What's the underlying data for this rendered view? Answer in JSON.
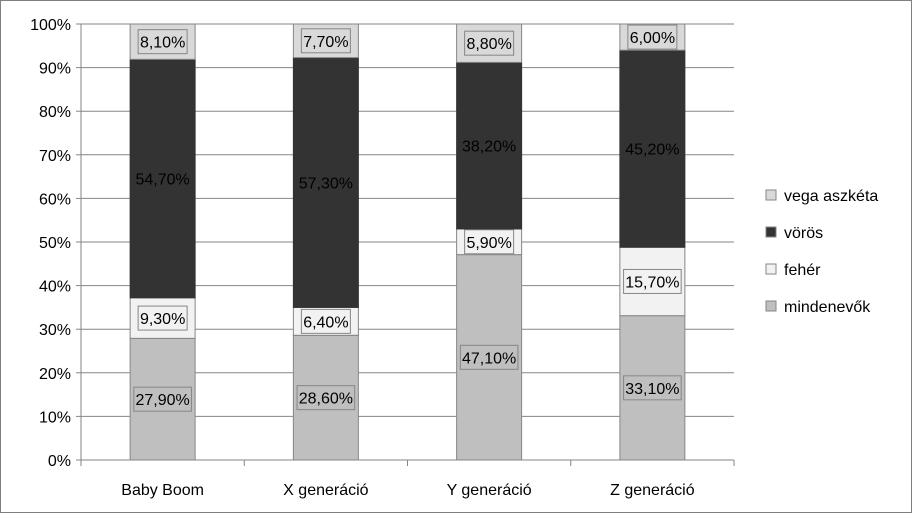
{
  "chart_data": {
    "type": "bar",
    "stacked": true,
    "percent_stacked": true,
    "categories": [
      "Baby Boom",
      "X generáció",
      "Y generáció",
      "Z generáció"
    ],
    "series": [
      {
        "name": "mindenevők",
        "values": [
          27.9,
          28.6,
          47.1,
          33.1
        ],
        "labels": [
          "27,90%",
          "28,60%",
          "47,10%",
          "33,10%"
        ],
        "color": "#bfbfbf"
      },
      {
        "name": "fehér",
        "values": [
          9.3,
          6.4,
          5.9,
          15.7
        ],
        "labels": [
          "9,30%",
          "6,40%",
          "5,90%",
          "15,70%"
        ],
        "color": "#f2f2f2"
      },
      {
        "name": "vörös",
        "values": [
          54.7,
          57.3,
          38.2,
          45.2
        ],
        "labels": [
          "54,70%",
          "57,30%",
          "38,20%",
          "45,20%"
        ],
        "color": "#333333"
      },
      {
        "name": "vega aszkéta",
        "values": [
          8.1,
          7.7,
          8.8,
          6.0
        ],
        "labels": [
          "8,10%",
          "7,70%",
          "8,80%",
          "6,00%"
        ],
        "color": "#d9d9d9"
      }
    ],
    "ylim": [
      0,
      100
    ],
    "yticks": [
      "0%",
      "10%",
      "20%",
      "30%",
      "40%",
      "50%",
      "60%",
      "70%",
      "80%",
      "90%",
      "100%"
    ],
    "grid": true,
    "legend_position": "right"
  }
}
